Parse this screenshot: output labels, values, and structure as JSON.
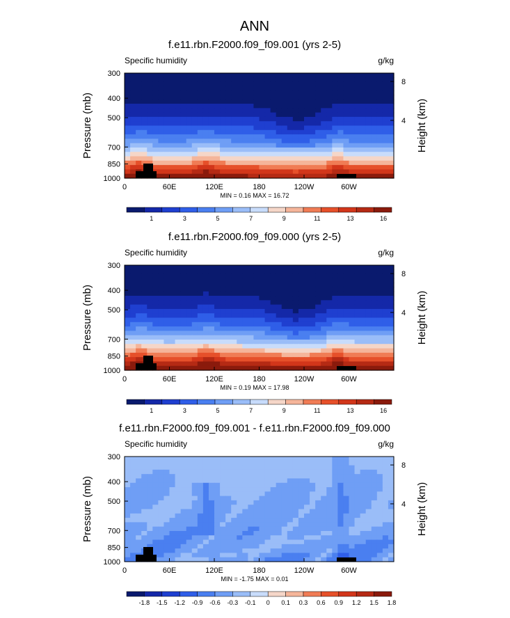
{
  "figure": {
    "title": "ANN"
  },
  "colors": {
    "abs_scale": [
      "#0a1a6e",
      "#1428a8",
      "#1f3fd0",
      "#2f5ee8",
      "#4a7ff0",
      "#6f9ef5",
      "#9abdf8",
      "#c8dcfb",
      "#f5d6c8",
      "#f5b59a",
      "#f07c55",
      "#e6502a",
      "#d2361a",
      "#b52a14",
      "#8a1a0c"
    ],
    "diff_scale": [
      "#0a1a6e",
      "#1428a8",
      "#1f3fd0",
      "#2f5ee8",
      "#4a7ff0",
      "#6f9ef5",
      "#9abdf8",
      "#c8dcfb",
      "#f5d6c8",
      "#f5b59a",
      "#f07c55",
      "#e6502a",
      "#d2361a",
      "#b52a14",
      "#8a1a0c"
    ],
    "land": "#000000"
  },
  "panels": [
    {
      "title": "f.e11.rbn.F2000.f09_f09.001 (yrs 2-5)",
      "left_label": "Specific humidity",
      "right_label": "g/kg",
      "min_max": "MIN =   0.16  MAX =  16.72",
      "colorbar_labels": [
        "1",
        "3",
        "5",
        "7",
        "9",
        "11",
        "13",
        "16"
      ]
    },
    {
      "title": "f.e11.rbn.F2000.f09_f09.000 (yrs 2-5)",
      "left_label": "Specific humidity",
      "right_label": "g/kg",
      "min_max": "MIN =   0.19  MAX =  17.98",
      "colorbar_labels": [
        "1",
        "3",
        "5",
        "7",
        "9",
        "11",
        "13",
        "16"
      ]
    },
    {
      "title": "f.e11.rbn.F2000.f09_f09.001 - f.e11.rbn.F2000.f09_f09.000",
      "left_label": "Specific humidity",
      "right_label": "g/kg",
      "min_max": "MIN =  -1.75  MAX =   0.01",
      "colorbar_labels": [
        "-1.8",
        "-1.5",
        "-1.2",
        "-0.9",
        "-0.6",
        "-0.3",
        "-0.1",
        "0",
        "0.1",
        "0.3",
        "0.6",
        "0.9",
        "1.2",
        "1.5",
        "1.8"
      ]
    }
  ],
  "axes": {
    "ylabel": "Pressure (mb)",
    "y2label": "Height (km)",
    "yticks": [
      "300",
      "400",
      "500",
      "700",
      "850",
      "1000"
    ],
    "y2ticks": [
      "8",
      "4"
    ],
    "xticks": [
      "0",
      "60E",
      "120E",
      "180",
      "120W",
      "60W"
    ]
  },
  "chart_data": [
    {
      "type": "heatmap",
      "title": "f.e11.rbn.F2000.f09_f09.001 (yrs 2-5)",
      "ylabel": "Pressure (mb)",
      "x_ticks": [
        "0",
        "60E",
        "120E",
        "180",
        "120W",
        "60W"
      ],
      "y_ticks": [
        300,
        400,
        500,
        700,
        850,
        1000
      ],
      "x_range": [
        0,
        360
      ],
      "y_range": [
        1000,
        300
      ],
      "contour_levels": [
        1,
        2,
        3,
        4,
        5,
        6,
        7,
        8,
        9,
        10,
        11,
        12,
        13,
        14,
        15,
        16
      ],
      "min": 0.16,
      "max": 16.72
    },
    {
      "type": "heatmap",
      "title": "f.e11.rbn.F2000.f09_f09.000 (yrs 2-5)",
      "ylabel": "Pressure (mb)",
      "x_ticks": [
        "0",
        "60E",
        "120E",
        "180",
        "120W",
        "60W"
      ],
      "y_ticks": [
        300,
        400,
        500,
        700,
        850,
        1000
      ],
      "x_range": [
        0,
        360
      ],
      "y_range": [
        1000,
        300
      ],
      "contour_levels": [
        1,
        2,
        3,
        4,
        5,
        6,
        7,
        8,
        9,
        10,
        11,
        12,
        13,
        14,
        15,
        16
      ],
      "min": 0.19,
      "max": 17.98
    },
    {
      "type": "heatmap",
      "title": "f.e11.rbn.F2000.f09_f09.001 - f.e11.rbn.F2000.f09_f09.000",
      "ylabel": "Pressure (mb)",
      "x_ticks": [
        "0",
        "60E",
        "120E",
        "180",
        "120W",
        "60W"
      ],
      "y_ticks": [
        300,
        400,
        500,
        700,
        850,
        1000
      ],
      "x_range": [
        0,
        360
      ],
      "y_range": [
        1000,
        300
      ],
      "contour_levels": [
        -1.8,
        -1.5,
        -1.2,
        -0.9,
        -0.6,
        -0.3,
        -0.1,
        0,
        0.1,
        0.3,
        0.6,
        0.9,
        1.2,
        1.5,
        1.8
      ],
      "min": -1.75,
      "max": 0.01
    }
  ]
}
